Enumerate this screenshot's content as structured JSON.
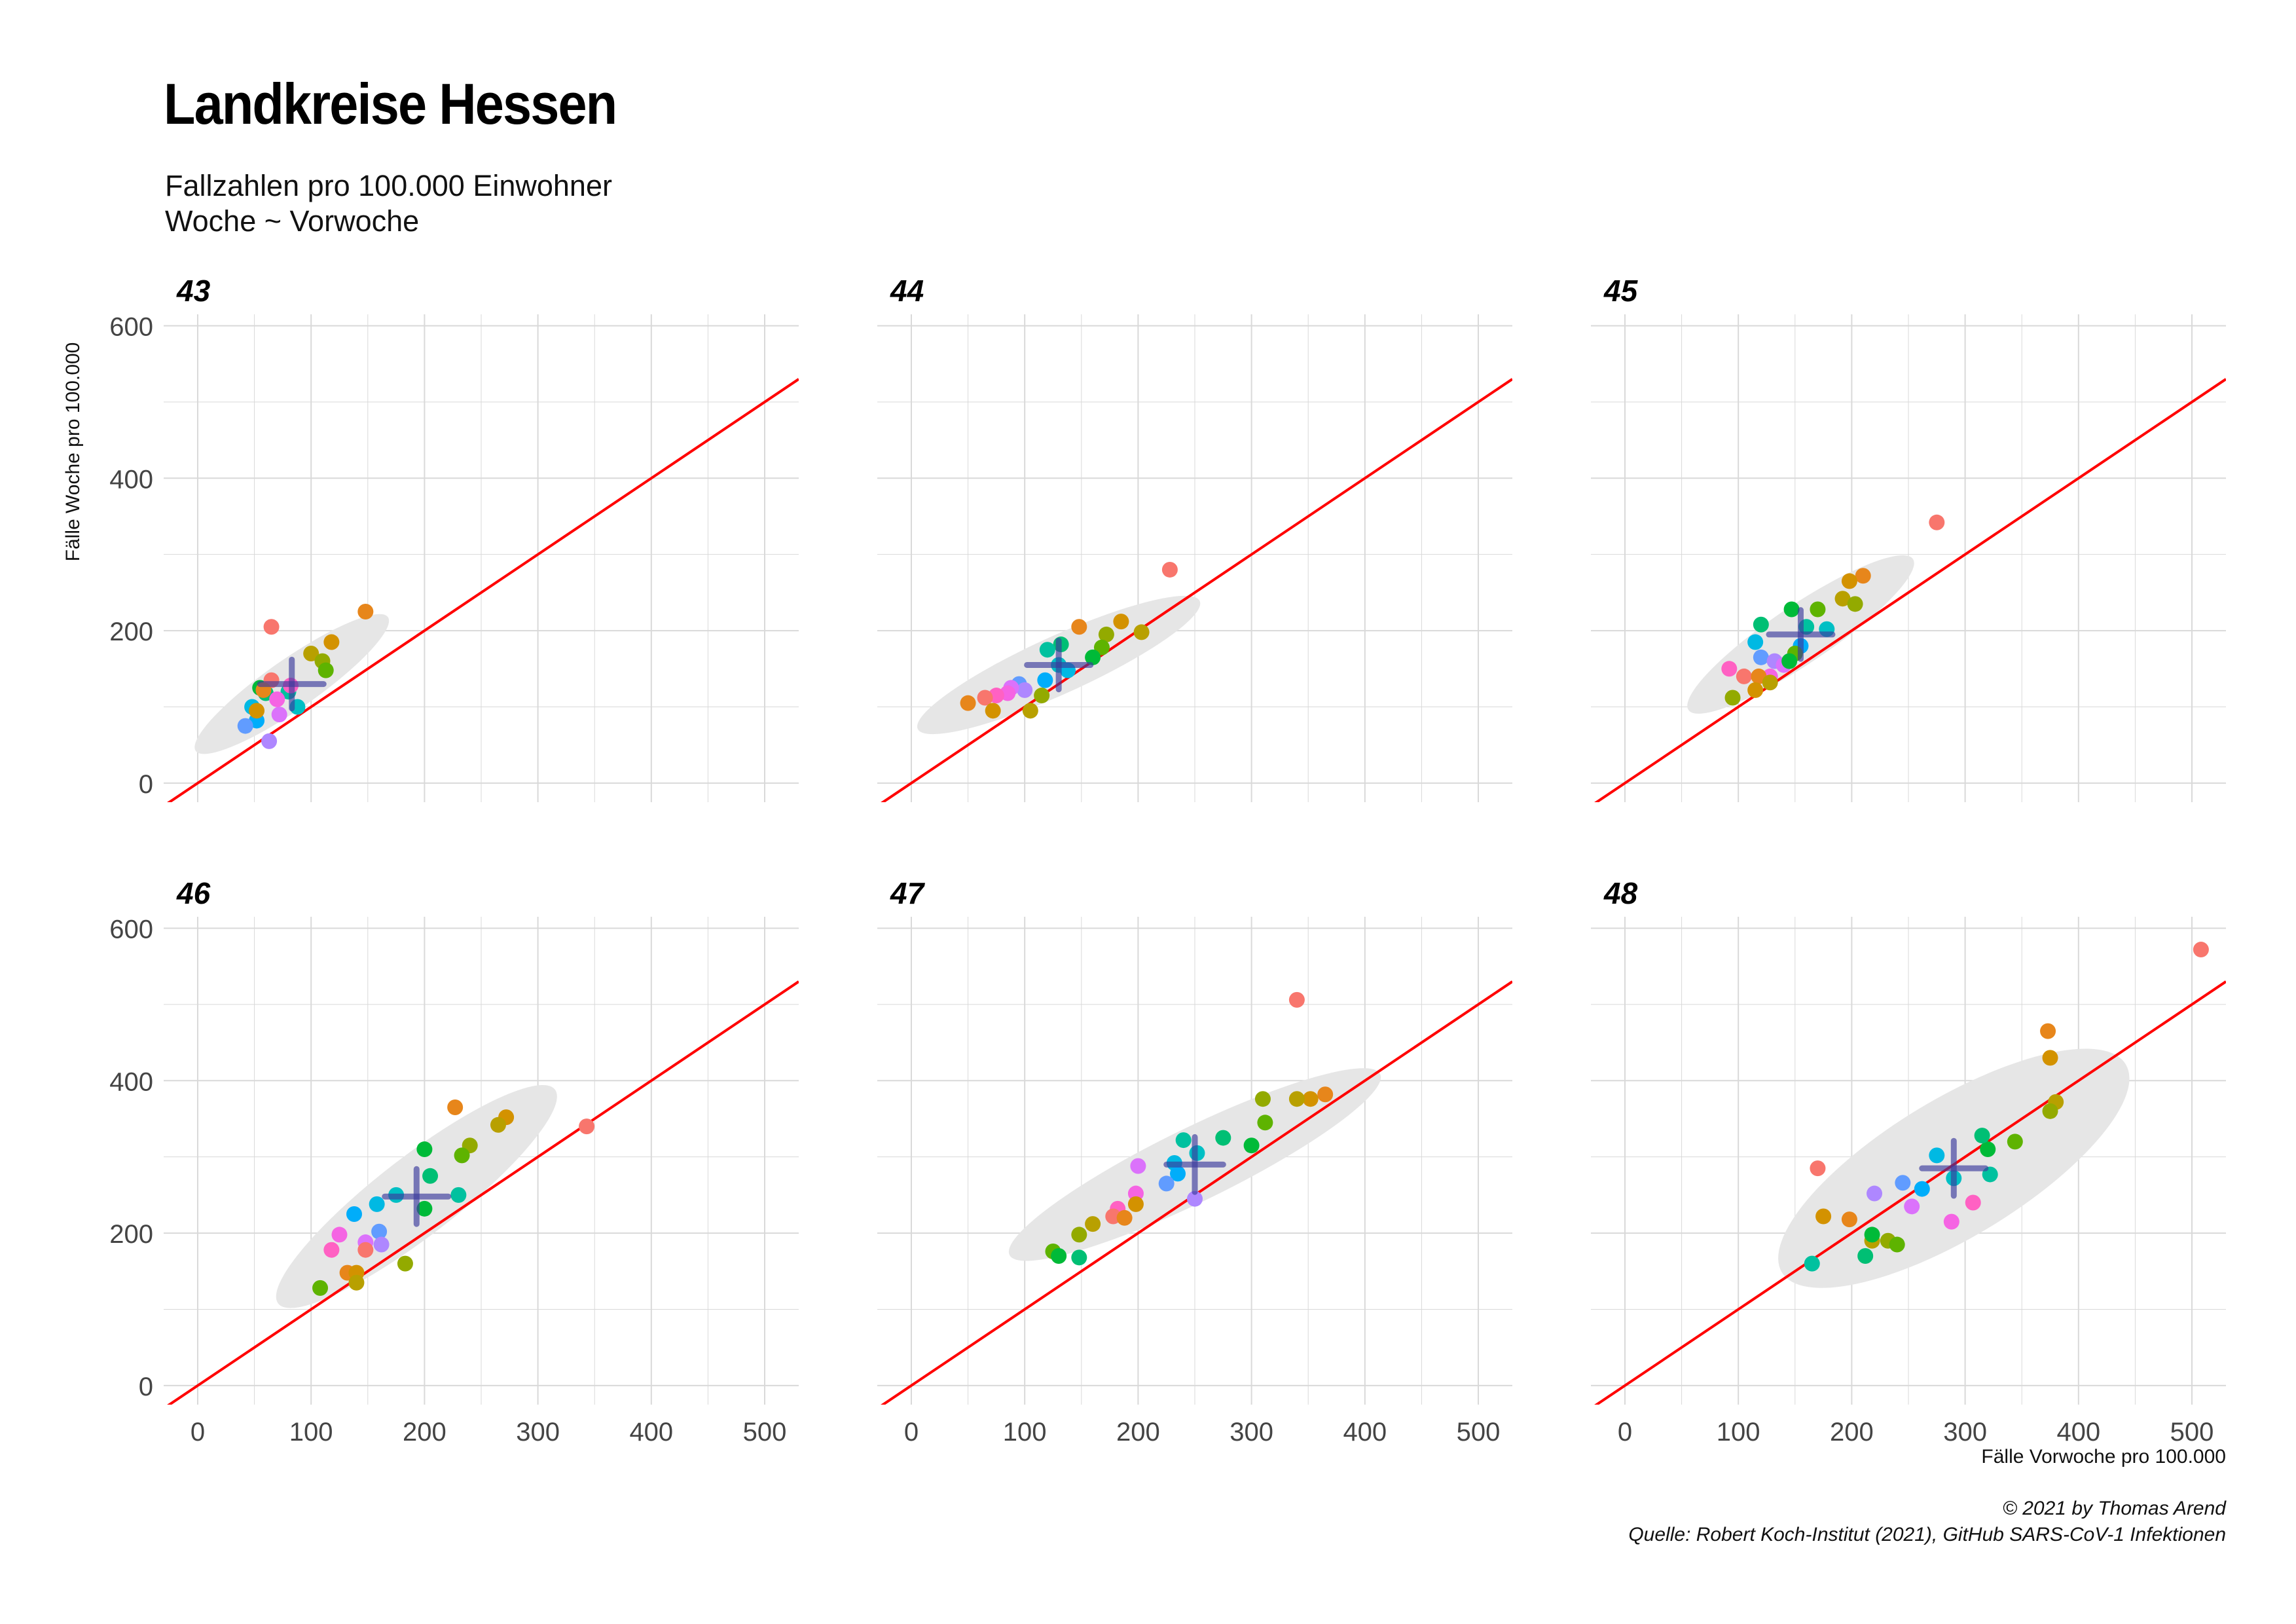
{
  "title": "Landkreise Hessen",
  "subtitle": [
    "Fallzahlen pro 100.000 Einwohner",
    "Woche ~ Vorwoche"
  ],
  "caption": [
    "© 2021 by Thomas Arend",
    "Quelle: Robert Koch-Institut (2021), GitHub SARS-CoV-1 Infektionen"
  ],
  "colors": {
    "reference_line": "#ff0000",
    "centroid": "#3a3a9c",
    "ellipse": "#e6e6e6",
    "grid": "#d9d9d9"
  },
  "chart_data": {
    "type": "scatter",
    "xlabel": "Fälle Vorwoche pro 100.000",
    "ylabel": "Fälle Woche pro 100.000",
    "xlim": [
      -30,
      530
    ],
    "ylim": [
      -25,
      615
    ],
    "xticks": [
      0,
      100,
      200,
      300,
      400,
      500
    ],
    "yticks": [
      0,
      200,
      400,
      600
    ],
    "grid": true,
    "reference_line": {
      "slope": 1,
      "intercept": 0
    },
    "point_colors": [
      "#F8766D",
      "#E7861B",
      "#D39200",
      "#B8A000",
      "#93AA00",
      "#5EB300",
      "#00BA38",
      "#00BF74",
      "#00C19F",
      "#00BFC4",
      "#00B9E3",
      "#00ADFA",
      "#619CFF",
      "#AE87FF",
      "#DB72FB",
      "#F564E3",
      "#FF61C3"
    ],
    "panels": [
      {
        "label": "43",
        "points": [
          [
            65,
            205
          ],
          [
            148,
            225
          ],
          [
            118,
            185
          ],
          [
            100,
            170
          ],
          [
            110,
            160
          ],
          [
            113,
            148
          ],
          [
            55,
            125
          ],
          [
            60,
            118
          ],
          [
            80,
            120
          ],
          [
            88,
            100
          ],
          [
            48,
            100
          ],
          [
            52,
            82
          ],
          [
            42,
            75
          ],
          [
            63,
            55
          ],
          [
            72,
            90
          ],
          [
            70,
            110
          ],
          [
            82,
            128
          ],
          [
            65,
            135
          ],
          [
            58,
            122
          ],
          [
            52,
            95
          ]
        ],
        "centroid": [
          83,
          130
        ],
        "cross": [
          28,
          32
        ],
        "ellipse": {
          "center": [
            83,
            130
          ],
          "rx": 122,
          "ry": 26,
          "angle": 46
        }
      },
      {
        "label": "44",
        "points": [
          [
            228,
            280
          ],
          [
            148,
            205
          ],
          [
            185,
            212
          ],
          [
            203,
            198
          ],
          [
            172,
            195
          ],
          [
            168,
            178
          ],
          [
            160,
            165
          ],
          [
            132,
            182
          ],
          [
            120,
            175
          ],
          [
            130,
            155
          ],
          [
            138,
            148
          ],
          [
            118,
            135
          ],
          [
            95,
            130
          ],
          [
            100,
            122
          ],
          [
            88,
            125
          ],
          [
            85,
            118
          ],
          [
            75,
            115
          ],
          [
            65,
            112
          ],
          [
            50,
            105
          ],
          [
            72,
            95
          ],
          [
            105,
            95
          ],
          [
            115,
            115
          ]
        ],
        "centroid": [
          130,
          155
        ],
        "cross": [
          28,
          32
        ],
        "ellipse": {
          "center": [
            130,
            155
          ],
          "rx": 150,
          "ry": 28,
          "angle": 34
        }
      },
      {
        "label": "45",
        "points": [
          [
            275,
            342
          ],
          [
            210,
            272
          ],
          [
            198,
            265
          ],
          [
            192,
            242
          ],
          [
            203,
            235
          ],
          [
            170,
            228
          ],
          [
            147,
            228
          ],
          [
            120,
            208
          ],
          [
            160,
            205
          ],
          [
            178,
            202
          ],
          [
            115,
            185
          ],
          [
            155,
            180
          ],
          [
            120,
            165
          ],
          [
            132,
            160
          ],
          [
            140,
            155
          ],
          [
            128,
            140
          ],
          [
            92,
            150
          ],
          [
            105,
            140
          ],
          [
            118,
            140
          ],
          [
            115,
            122
          ],
          [
            128,
            132
          ],
          [
            95,
            112
          ],
          [
            150,
            170
          ],
          [
            145,
            160
          ]
        ],
        "centroid": [
          155,
          195
        ],
        "cross": [
          28,
          32
        ],
        "ellipse": {
          "center": [
            155,
            195
          ],
          "rx": 140,
          "ry": 30,
          "angle": 45
        }
      },
      {
        "label": "46",
        "points": [
          [
            343,
            340
          ],
          [
            227,
            365
          ],
          [
            272,
            352
          ],
          [
            265,
            342
          ],
          [
            240,
            315
          ],
          [
            233,
            302
          ],
          [
            200,
            310
          ],
          [
            205,
            275
          ],
          [
            230,
            250
          ],
          [
            175,
            250
          ],
          [
            158,
            238
          ],
          [
            138,
            225
          ],
          [
            160,
            202
          ],
          [
            162,
            185
          ],
          [
            148,
            188
          ],
          [
            125,
            198
          ],
          [
            118,
            178
          ],
          [
            148,
            178
          ],
          [
            132,
            148
          ],
          [
            140,
            148
          ],
          [
            140,
            135
          ],
          [
            183,
            160
          ],
          [
            108,
            128
          ],
          [
            200,
            232
          ]
        ],
        "centroid": [
          193,
          248
        ],
        "cross": [
          28,
          36
        ],
        "ellipse": {
          "center": [
            193,
            248
          ],
          "rx": 186,
          "ry": 42,
          "angle": 49
        }
      },
      {
        "label": "47",
        "points": [
          [
            340,
            506
          ],
          [
            365,
            382
          ],
          [
            352,
            376
          ],
          [
            340,
            376
          ],
          [
            310,
            376
          ],
          [
            312,
            345
          ],
          [
            300,
            315
          ],
          [
            275,
            325
          ],
          [
            240,
            322
          ],
          [
            252,
            305
          ],
          [
            232,
            292
          ],
          [
            235,
            278
          ],
          [
            225,
            265
          ],
          [
            250,
            245
          ],
          [
            200,
            288
          ],
          [
            198,
            252
          ],
          [
            182,
            232
          ],
          [
            178,
            222
          ],
          [
            188,
            220
          ],
          [
            198,
            238
          ],
          [
            160,
            212
          ],
          [
            148,
            198
          ],
          [
            125,
            176
          ],
          [
            130,
            170
          ],
          [
            148,
            168
          ]
        ],
        "centroid": [
          250,
          290
        ],
        "cross": [
          25,
          36
        ],
        "ellipse": {
          "center": [
            250,
            290
          ],
          "rx": 202,
          "ry": 36,
          "angle": 36
        }
      },
      {
        "label": "48",
        "points": [
          [
            508,
            572
          ],
          [
            373,
            465
          ],
          [
            375,
            430
          ],
          [
            380,
            372
          ],
          [
            375,
            360
          ],
          [
            344,
            320
          ],
          [
            320,
            310
          ],
          [
            315,
            328
          ],
          [
            322,
            277
          ],
          [
            290,
            272
          ],
          [
            275,
            302
          ],
          [
            262,
            258
          ],
          [
            245,
            266
          ],
          [
            220,
            252
          ],
          [
            253,
            235
          ],
          [
            288,
            215
          ],
          [
            307,
            240
          ],
          [
            170,
            285
          ],
          [
            198,
            218
          ],
          [
            175,
            222
          ],
          [
            218,
            190
          ],
          [
            232,
            190
          ],
          [
            240,
            185
          ],
          [
            218,
            198
          ],
          [
            212,
            170
          ],
          [
            165,
            160
          ]
        ],
        "centroid": [
          290,
          285
        ],
        "cross": [
          28,
          36
        ],
        "ellipse": {
          "center": [
            290,
            285
          ],
          "rx": 204,
          "ry": 70,
          "angle": 42
        }
      }
    ]
  }
}
